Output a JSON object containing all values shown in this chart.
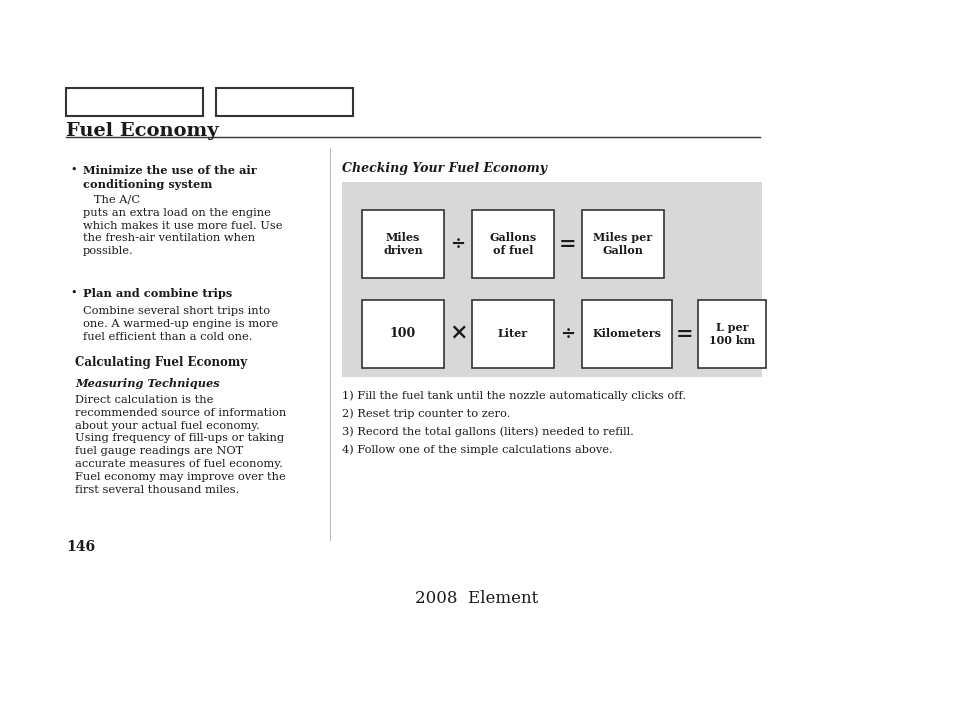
{
  "page_bg": "#ffffff",
  "section_title": "Fuel Economy",
  "gray_color": "#d8d8d8",
  "steps": [
    "1) Fill the fuel tank until the nozzle automatically clicks off.",
    "2) Reset trip counter to zero.",
    "3) Record the total gallons (liters) needed to refill.",
    "4) Follow one of the simple calculations above."
  ],
  "page_number": "146",
  "footer_text": "2008  Element",
  "measuring_text": "Direct calculation is the\nrecommended source of information\nabout your actual fuel economy.\nUsing frequency of fill-ups or taking\nfuel gauge readings are NOT\naccurate measures of fuel economy.\nFuel economy may improve over the\nfirst several thousand miles."
}
